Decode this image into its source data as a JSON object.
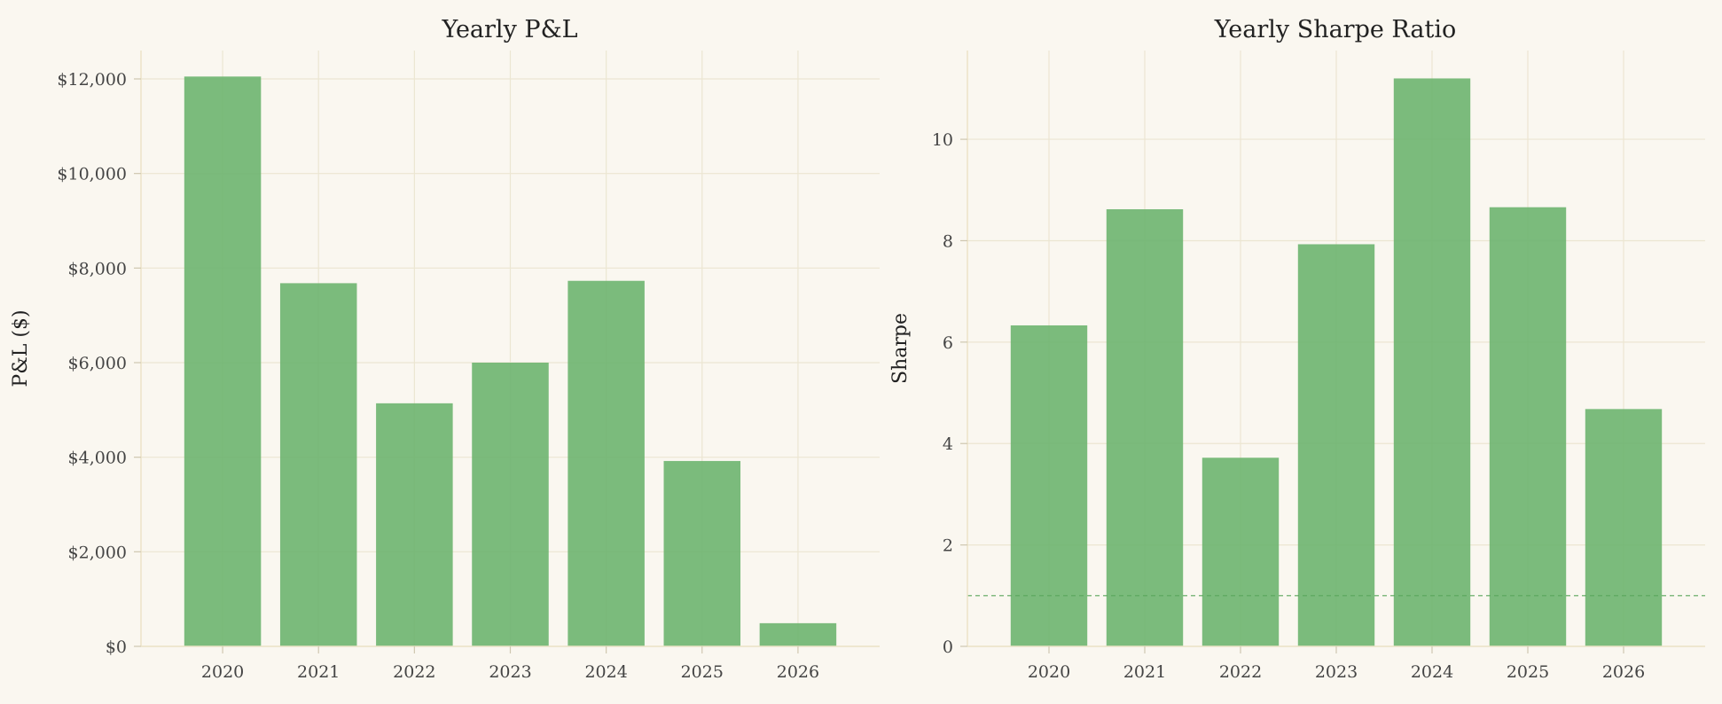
{
  "colors": {
    "background": "#faf7f0",
    "bar": "#6db46f",
    "grid": "#ece6d2",
    "text": "#222222",
    "reference_line": "#5aa65c"
  },
  "chart_data": [
    {
      "type": "bar",
      "title": "Yearly P&L",
      "xlabel": "",
      "ylabel": "P&L ($)",
      "categories": [
        "2020",
        "2021",
        "2022",
        "2023",
        "2024",
        "2025",
        "2026"
      ],
      "values": [
        12050,
        7680,
        5140,
        6000,
        7730,
        3920,
        490
      ],
      "ylim": [
        0,
        12600
      ],
      "yticks": [
        0,
        2000,
        4000,
        6000,
        8000,
        10000,
        12000
      ],
      "ytick_labels": [
        "$0",
        "$2,000",
        "$4,000",
        "$6,000",
        "$8,000",
        "$10,000",
        "$12,000"
      ],
      "grid": true,
      "legend": "none"
    },
    {
      "type": "bar",
      "title": "Yearly Sharpe Ratio",
      "xlabel": "",
      "ylabel": "Sharpe",
      "categories": [
        "2020",
        "2021",
        "2022",
        "2023",
        "2024",
        "2025",
        "2026"
      ],
      "values": [
        6.33,
        8.62,
        3.72,
        7.93,
        11.2,
        8.66,
        4.68
      ],
      "ylim": [
        0,
        11.75
      ],
      "yticks": [
        0,
        2,
        4,
        6,
        8,
        10
      ],
      "ytick_labels": [
        "0",
        "2",
        "4",
        "6",
        "8",
        "10"
      ],
      "reference_line": 1,
      "grid": true,
      "legend": "none"
    }
  ]
}
